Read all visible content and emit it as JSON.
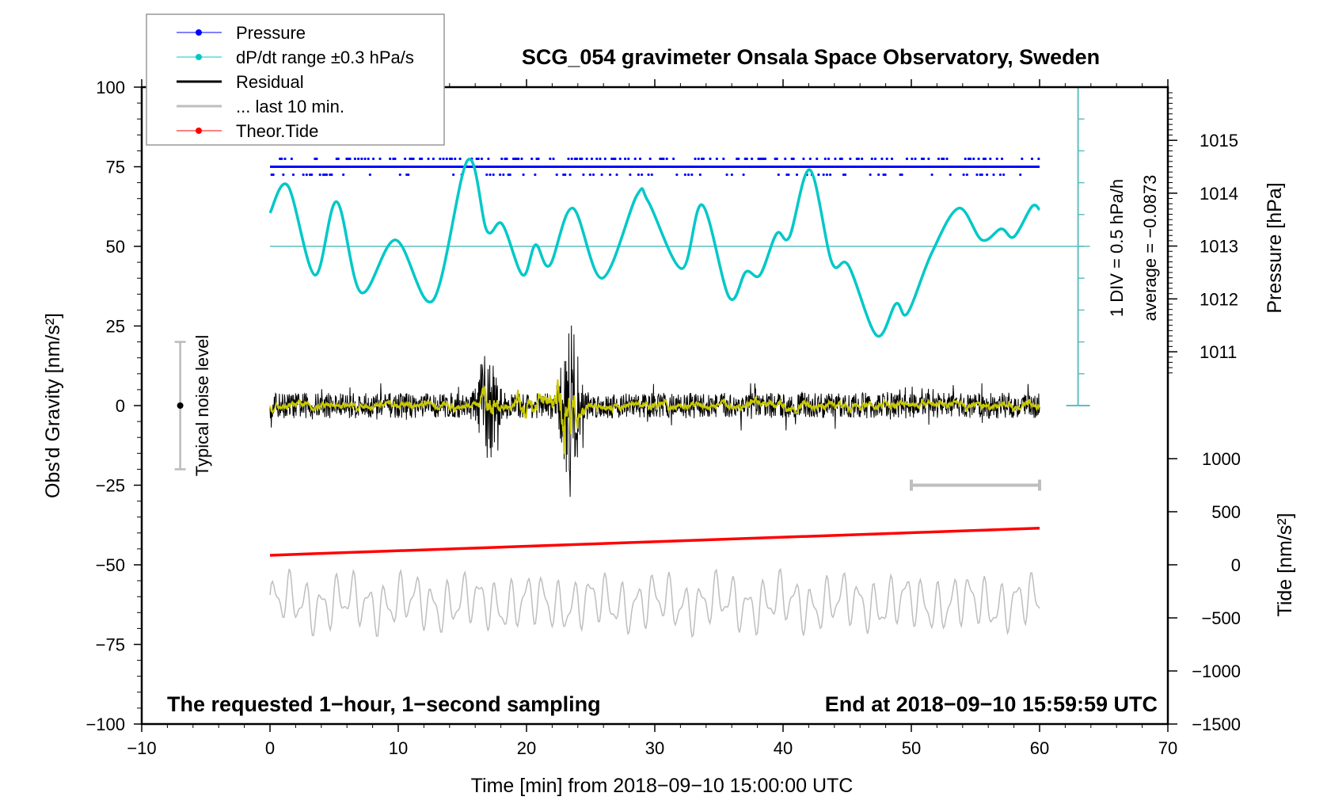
{
  "chart_data": {
    "type": "line",
    "title": "SCG_054 gravimeter Onsala Space Observatory, Sweden",
    "xlabel": "Time [min] from 2018−09−10 15:00:00 UTC",
    "ylabel_left": "Obs'd Gravity [nm/s²]",
    "ylabel_right_pressure": "Pressure [hPa]",
    "ylabel_right_tide": "Tide [nm/s²]",
    "xlim": [
      -10,
      70
    ],
    "ylim": [
      -100,
      100
    ],
    "xticks": [
      -10,
      0,
      10,
      20,
      30,
      40,
      50,
      60,
      70
    ],
    "xtick_labels": [
      "−10",
      "0",
      "10",
      "20",
      "30",
      "40",
      "50",
      "60",
      "70"
    ],
    "yticks": [
      -100,
      -75,
      -50,
      -25,
      0,
      25,
      50,
      75,
      100
    ],
    "ytick_labels": [
      "−100",
      "−75",
      "−50",
      "−25",
      "0",
      "25",
      "50",
      "75",
      "100"
    ],
    "pressure_ticks": [
      1011,
      1012,
      1013,
      1014,
      1015
    ],
    "pressure_tick_labels": [
      "1011",
      "1012",
      "1013",
      "1014",
      "1015"
    ],
    "tide_ticks": [
      1000,
      500,
      0,
      -500,
      -1000,
      -1500
    ],
    "tide_tick_labels": [
      "1000",
      "500",
      "0",
      "−500",
      "−1000",
      "−1500"
    ],
    "legend": {
      "placement": "top-left",
      "entries": [
        {
          "label": "Pressure",
          "color": "#0000ff"
        },
        {
          "label": "dP/dt range ±0.3 hPa/s",
          "color": "#00c8c8"
        },
        {
          "label": "Residual",
          "color": "#000000"
        },
        {
          "label": "... last 10 min.",
          "color": "#bebebe"
        },
        {
          "label": "Theor.Tide",
          "color": "#ff0000"
        }
      ]
    },
    "annotations": {
      "bottom_left": "The requested 1−hour, 1−second sampling",
      "bottom_right": "End at 2018−09−10 15:59:59 UTC",
      "noise": "Typical noise level",
      "div": "1 DIV = 0.5 hPa/h",
      "average": "average = −0.0873"
    },
    "noise_level": {
      "x": -7,
      "range": [
        -20,
        20
      ]
    },
    "last10_bar": {
      "range_min": [
        50,
        60
      ],
      "y": -25
    },
    "pressure_hPa": {
      "t": [
        0,
        60
      ],
      "value": 1014.5
    },
    "dpdt_plot_units": {
      "center": 50,
      "t": [
        0,
        1.4,
        3.5,
        5.2,
        7.1,
        9.8,
        12.7,
        15.4,
        16.9,
        18.1,
        19.7,
        20.7,
        21.8,
        23.6,
        25.9,
        28.6,
        29.5,
        32.1,
        33.7,
        35.8,
        37.1,
        38.2,
        39.5,
        40.5,
        42.1,
        43.8,
        45.1,
        47.3,
        48.8,
        49.7,
        51.6,
        53.7,
        55.5,
        57,
        58,
        59.4,
        60
      ],
      "y": [
        60.5,
        69,
        41,
        64,
        35.5,
        52,
        33,
        77,
        55,
        57,
        41,
        50.5,
        44,
        62,
        40,
        66,
        64,
        43,
        63,
        34,
        42,
        41,
        54,
        53,
        74,
        45,
        44,
        22,
        32,
        29,
        48,
        62,
        52,
        55.5,
        53,
        62.5,
        61.5
      ]
    },
    "residual": {
      "typical_amplitude_nm_s2": 4,
      "events": [
        {
          "t": 17,
          "amp": 14
        },
        {
          "t": 23.4,
          "amp": 25
        }
      ]
    },
    "theor_tide_nm_s2": {
      "t": [
        0,
        60
      ],
      "values": [
        90,
        345
      ]
    },
    "last10_trace_plot_center": -62
  },
  "colors": {
    "pressure": "#0000ff",
    "dpdt": "#00c8c8",
    "residual": "#000000",
    "smooth": "#c8c800",
    "last10": "#bebebe",
    "tide": "#ff0000",
    "axis_cyan": "#5fbfbf"
  }
}
